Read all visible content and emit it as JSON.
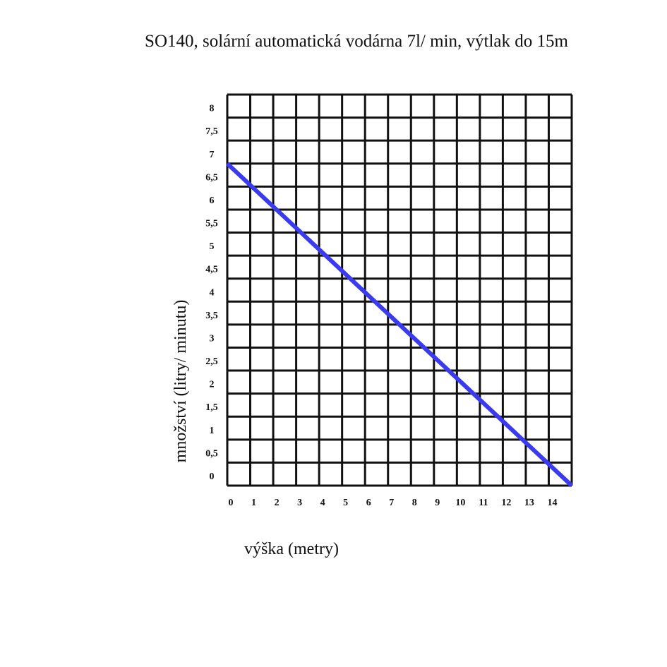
{
  "chart_data": {
    "type": "line",
    "title": "SO140, solární automatická vodárna 7l/ min, výtlak do 15m",
    "xlabel": "výška (metry)",
    "ylabel": "množství (litry/ minutu)",
    "xlim": [
      0,
      15
    ],
    "ylim": [
      0,
      8.5
    ],
    "x_ticks": [
      "0",
      "1",
      "2",
      "3",
      "4",
      "5",
      "6",
      "7",
      "8",
      "9",
      "10",
      "11",
      "12",
      "13",
      "14"
    ],
    "y_ticks": [
      "0",
      "0,5",
      "1",
      "1,5",
      "2",
      "2,5",
      "3",
      "3,5",
      "4",
      "4,5",
      "5",
      "5,5",
      "6",
      "6,5",
      "7",
      "7,5",
      "8"
    ],
    "grid": true,
    "line_color": "#3a3af0",
    "series": [
      {
        "x": [
          0,
          15
        ],
        "y": [
          7,
          0
        ]
      }
    ]
  }
}
